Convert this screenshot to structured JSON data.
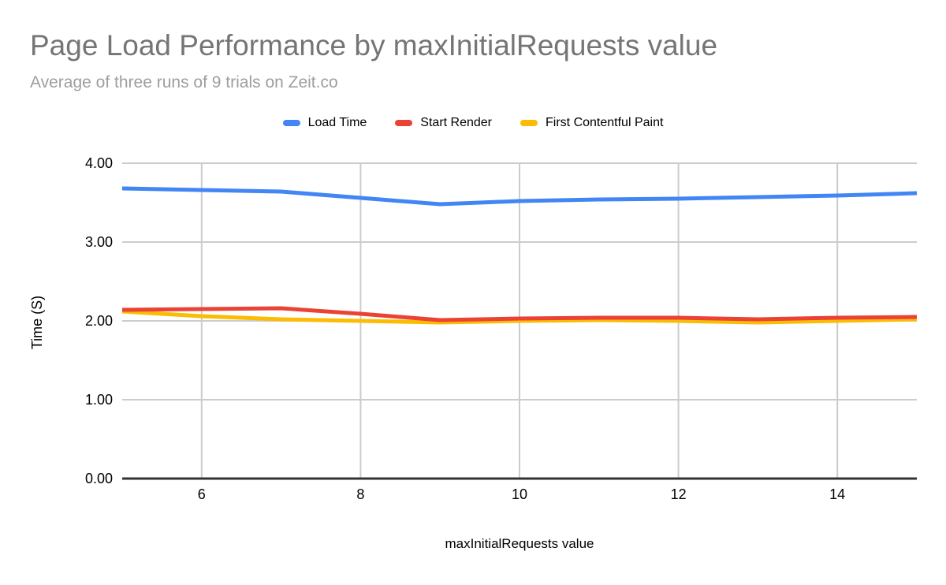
{
  "colors": {
    "background": "#ffffff",
    "title": "#757575",
    "subtitle": "#9e9e9e",
    "grid": "#cccccc",
    "axis": "#333333",
    "tick_text": "#000000"
  },
  "chart_data": {
    "type": "line",
    "title": "Page Load Performance by maxInitialRequests value",
    "subtitle": "Average of three runs of 9 trials on Zeit.co",
    "xlabel": "maxInitialRequests value",
    "ylabel": "Time (S)",
    "xlim": [
      5,
      15
    ],
    "ylim": [
      0,
      4
    ],
    "grid": true,
    "legend_position": "top",
    "x": [
      5,
      6,
      7,
      8,
      9,
      10,
      11,
      12,
      13,
      14,
      15
    ],
    "x_ticks": [
      6,
      8,
      10,
      12,
      14
    ],
    "y_ticks": [
      "0.00",
      "1.00",
      "2.00",
      "3.00",
      "4.00"
    ],
    "series": [
      {
        "name": "Load Time",
        "color": "#4285F4",
        "values": [
          3.68,
          3.66,
          3.64,
          3.56,
          3.48,
          3.52,
          3.54,
          3.55,
          3.57,
          3.59,
          3.62
        ]
      },
      {
        "name": "Start Render",
        "color": "#EA4335",
        "values": [
          2.14,
          2.15,
          2.16,
          2.09,
          2.01,
          2.03,
          2.04,
          2.04,
          2.02,
          2.04,
          2.05
        ]
      },
      {
        "name": "First Contentful Paint",
        "color": "#FBBC04",
        "values": [
          2.12,
          2.06,
          2.02,
          2.0,
          1.98,
          2.0,
          2.01,
          2.0,
          1.98,
          2.0,
          2.02
        ]
      }
    ]
  }
}
